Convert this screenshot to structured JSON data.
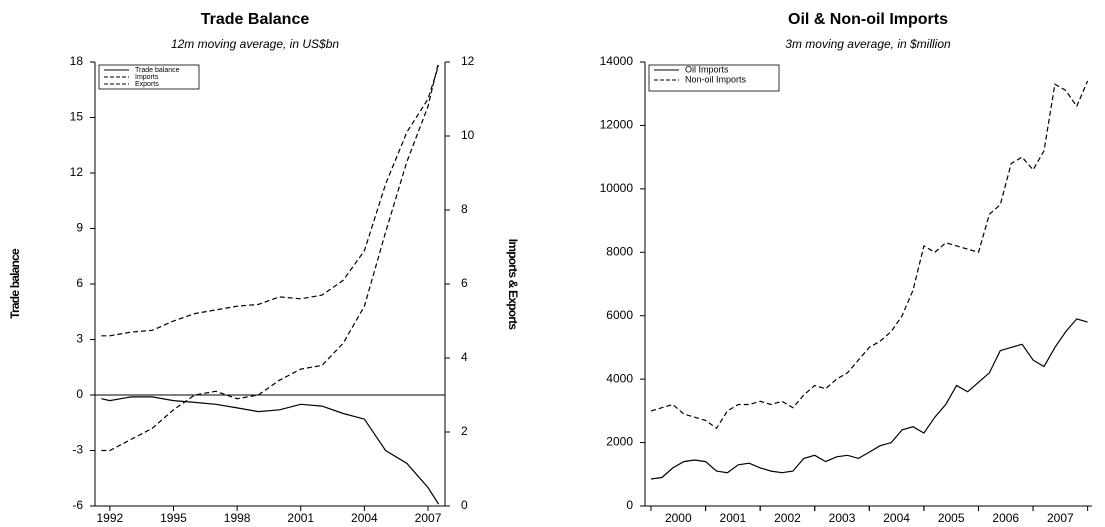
{
  "chart_data": [
    {
      "type": "line",
      "title": "Trade Balance",
      "subtitle": "12m moving average, in US$bn",
      "y_label": "Trade balance",
      "y2_label": "Imports & Exports",
      "x": [
        1991.6,
        1992,
        1993,
        1994,
        1995,
        1996,
        1997,
        1998,
        1999,
        2000,
        2001,
        2002,
        2003,
        2004,
        2005,
        2006,
        2007,
        2007.5
      ],
      "series": [
        {
          "name": "Trade balance",
          "color": "#000000",
          "style": "solid",
          "axis": "y",
          "values": [
            -0.2,
            -0.3,
            -0.1,
            -0.1,
            -0.3,
            -0.4,
            -0.5,
            -0.7,
            -0.9,
            -0.8,
            -0.5,
            -0.6,
            -1.0,
            -1.3,
            -3.0,
            -3.7,
            -5.0,
            -5.9
          ]
        },
        {
          "name": "Imports",
          "color": "#000000",
          "style": "dashed",
          "axis": "y2",
          "values": [
            4.6,
            4.6,
            4.7,
            4.75,
            5.0,
            5.2,
            5.3,
            5.4,
            5.45,
            5.65,
            5.6,
            5.7,
            6.1,
            6.9,
            8.7,
            10.1,
            11.0,
            11.9
          ]
        },
        {
          "name": "Exports",
          "color": "#000000",
          "style": "dashed",
          "axis": "y2",
          "values": [
            1.5,
            1.5,
            1.8,
            2.1,
            2.6,
            3.0,
            3.1,
            2.9,
            3.0,
            3.4,
            3.7,
            3.8,
            4.4,
            5.4,
            7.4,
            9.3,
            10.8,
            12.0
          ]
        }
      ],
      "xlim": [
        1991.3,
        2007.8
      ],
      "xticks": [
        1992,
        1995,
        1998,
        2001,
        2004,
        2007
      ],
      "ylim": [
        -6,
        18
      ],
      "yticks": [
        -6,
        -3,
        0,
        3,
        6,
        9,
        12,
        15,
        18
      ],
      "y2lim": [
        0,
        12
      ],
      "y2ticks": [
        0,
        2,
        4,
        6,
        8,
        10,
        12
      ],
      "legend": "upper left"
    },
    {
      "type": "line",
      "title": "Oil & Non-oil Imports",
      "subtitle": "3m moving average, in $million",
      "x": [
        2000.0,
        2000.2,
        2000.4,
        2000.6,
        2000.8,
        2001.0,
        2001.2,
        2001.4,
        2001.6,
        2001.8,
        2002.0,
        2002.2,
        2002.4,
        2002.6,
        2002.8,
        2003.0,
        2003.2,
        2003.4,
        2003.6,
        2003.8,
        2004.0,
        2004.2,
        2004.4,
        2004.6,
        2004.8,
        2005.0,
        2005.2,
        2005.4,
        2005.6,
        2005.8,
        2006.0,
        2006.2,
        2006.4,
        2006.6,
        2006.8,
        2007.0,
        2007.2,
        2007.4,
        2007.6,
        2007.8,
        2008.0
      ],
      "series": [
        {
          "name": "Oil Imports",
          "color": "#000000",
          "style": "solid",
          "values": [
            850,
            900,
            1200,
            1400,
            1450,
            1400,
            1100,
            1050,
            1300,
            1350,
            1200,
            1100,
            1050,
            1100,
            1500,
            1600,
            1400,
            1550,
            1600,
            1500,
            1700,
            1900,
            2000,
            2400,
            2500,
            2300,
            2800,
            3200,
            3800,
            3600,
            3900,
            4200,
            4900,
            5000,
            5100,
            4600,
            4400,
            5000,
            5500,
            5900,
            5800
          ]
        },
        {
          "name": "Non-oil Imports",
          "color": "#000000",
          "style": "dashed",
          "values": [
            3000,
            3100,
            3200,
            2900,
            2800,
            2700,
            2450,
            3000,
            3200,
            3200,
            3300,
            3200,
            3300,
            3100,
            3500,
            3800,
            3700,
            4000,
            4200,
            4600,
            5000,
            5200,
            5500,
            6000,
            6800,
            8200,
            8000,
            8300,
            8200,
            8100,
            8000,
            9200,
            9500,
            10800,
            11000,
            10600,
            11200,
            13300,
            13100,
            12600,
            13400
          ]
        }
      ],
      "xlim": [
        1999.89,
        2008.08
      ],
      "xticks": [
        {
          "value": 2000.5,
          "label": "2000"
        },
        {
          "value": 2001.5,
          "label": "2001"
        },
        {
          "value": 2002.5,
          "label": "2002"
        },
        {
          "value": 2003.5,
          "label": "2003"
        },
        {
          "value": 2004.5,
          "label": "2004"
        },
        {
          "value": 2005.5,
          "label": "2005"
        },
        {
          "value": 2006.5,
          "label": "2006"
        },
        {
          "value": 2007.5,
          "label": "2007"
        }
      ],
      "ylim": [
        0,
        14000
      ],
      "yticks": [
        0,
        2000,
        4000,
        6000,
        8000,
        10000,
        12000,
        14000
      ],
      "legend": "upper left"
    }
  ]
}
